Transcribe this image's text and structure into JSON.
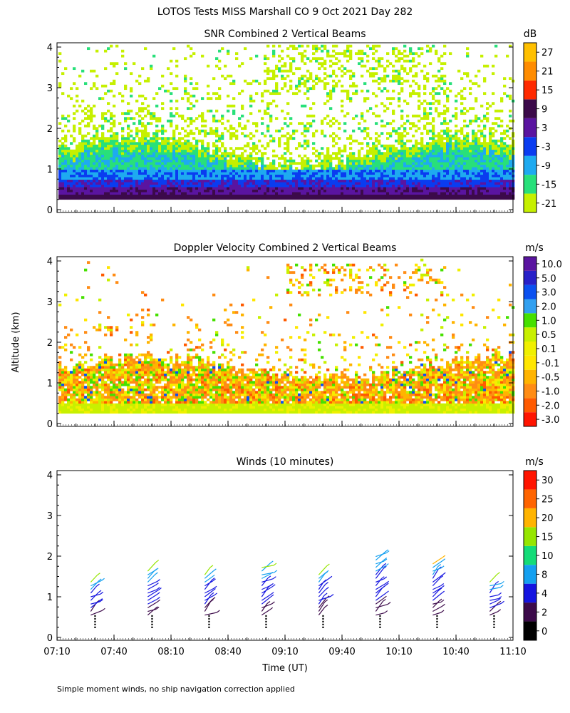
{
  "figure_title": "LOTOS Tests MISS Marshall CO   9 Oct 2021 Day 282",
  "y_axis_label": "Altitude (km)",
  "x_axis_label": "Time (UT)",
  "footnote": "Simple moment winds, no ship navigation correction applied",
  "colors": {
    "snr": [
      "#c6f000",
      "#28e07a",
      "#1eaaf0",
      "#0a3cf0",
      "#5a14a0",
      "#3c0a4a",
      "#ff2a00",
      "#ff8c00",
      "#ffc000"
    ],
    "velocity": [
      "#ff1400",
      "#ff5a00",
      "#ff8c14",
      "#ffb400",
      "#ffe600",
      "#f0f000",
      "#c8f000",
      "#46e000",
      "#32a0f0",
      "#0a50f0",
      "#2820c8",
      "#5a14a0",
      "#3c0a3c"
    ],
    "winds": [
      "#000000",
      "#3c0a4a",
      "#1414e0",
      "#14a0f0",
      "#14dc78",
      "#96e600",
      "#ffb400",
      "#ff6400",
      "#ff1400"
    ]
  },
  "chart_data": [
    {
      "type": "heatmap",
      "title": "SNR Combined 2 Vertical Beams",
      "ylabel": "Altitude (km)",
      "ylim": [
        0,
        4
      ],
      "y_ticks": [
        "0",
        "1",
        "2",
        "3",
        "4"
      ],
      "colorbar_unit": "dB",
      "colorbar_labels": [
        "-21",
        "-15",
        "-9",
        "-3",
        "3",
        "9",
        "15",
        "21",
        "27"
      ],
      "description_levels": [
        {
          "height_km": 0.3,
          "value_db": 9
        },
        {
          "height_km": 0.5,
          "value_db": 3
        },
        {
          "height_km": 0.7,
          "value_db": -3
        },
        {
          "height_km": 1.0,
          "value_db": -9
        },
        {
          "height_km": 1.3,
          "value_db": -15
        },
        {
          "height_km": 1.8,
          "value_db": -21
        }
      ]
    },
    {
      "type": "heatmap",
      "title": "Doppler Velocity Combined 2 Vertical Beams",
      "ylabel": "Altitude (km)",
      "ylim": [
        0,
        4
      ],
      "y_ticks": [
        "0",
        "1",
        "2",
        "3",
        "4"
      ],
      "colorbar_unit": "m/s",
      "colorbar_labels": [
        "-3.0",
        "-2.0",
        "-1.0",
        "-0.5",
        "-0.1",
        "0.1",
        "0.5",
        "1.0",
        "2.0",
        "3.0",
        "5.0",
        "10.0"
      ]
    },
    {
      "type": "scatter",
      "title": "Winds (10 minutes)",
      "ylabel": "Altitude (km)",
      "xlabel": "Time (UT)",
      "ylim": [
        0,
        4
      ],
      "y_ticks": [
        "0",
        "1",
        "2",
        "3",
        "4"
      ],
      "x_ticks": [
        "07:10",
        "07:40",
        "08:10",
        "08:40",
        "09:10",
        "09:40",
        "10:10",
        "10:40",
        "11:10"
      ],
      "colorbar_unit": "m/s",
      "colorbar_labels": [
        "0",
        "2",
        "4",
        "8",
        "10",
        "15",
        "20",
        "25",
        "30"
      ],
      "profiles": [
        {
          "time": "07:30",
          "top_km": 1.4
        },
        {
          "time": "08:00",
          "top_km": 1.7
        },
        {
          "time": "08:30",
          "top_km": 1.6
        },
        {
          "time": "09:00",
          "top_km": 1.8
        },
        {
          "time": "09:30",
          "top_km": 1.6
        },
        {
          "time": "10:00",
          "top_km": 2.0
        },
        {
          "time": "10:30",
          "top_km": 1.9
        },
        {
          "time": "11:00",
          "top_km": 1.4
        }
      ]
    }
  ]
}
